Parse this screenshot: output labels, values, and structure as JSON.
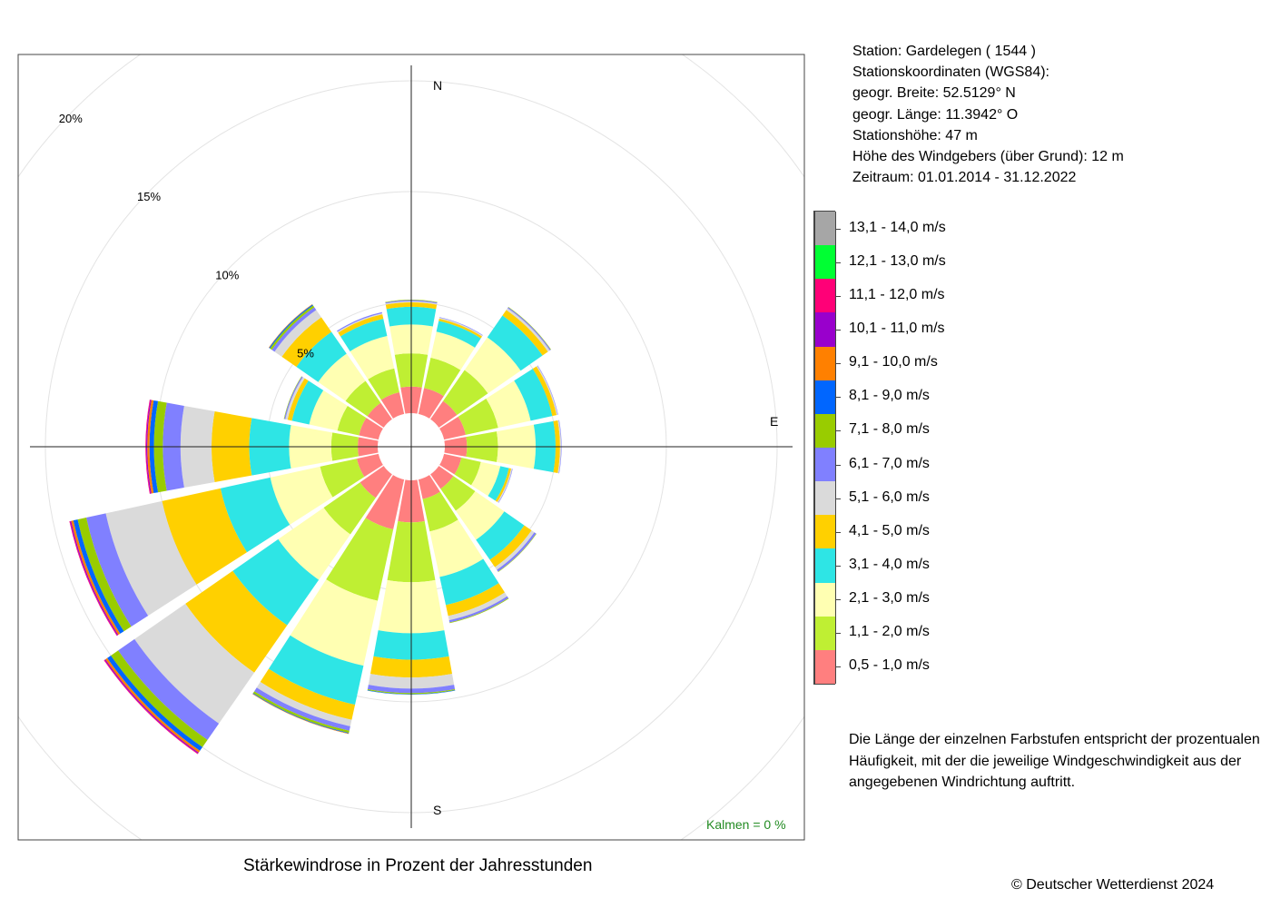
{
  "chart_data": {
    "type": "windrose",
    "title": "Stärkewindrose in Prozent der Jahresstunden",
    "directions": [
      "N",
      "NNO",
      "NO",
      "ONO",
      "O",
      "OSO",
      "SO",
      "SSO",
      "S",
      "SSW",
      "SW",
      "WSW",
      "W",
      "WNW",
      "NW",
      "NNW"
    ],
    "speed_classes": [
      {
        "label": "0,5 - 1,0 m/s",
        "color": "#ff7f7f"
      },
      {
        "label": "1,1 - 2,0 m/s",
        "color": "#bfef33"
      },
      {
        "label": "2,1 - 3,0 m/s",
        "color": "#ffffb2"
      },
      {
        "label": "3,1 - 4,0 m/s",
        "color": "#2ee5e5"
      },
      {
        "label": "4,1 - 5,0 m/s",
        "color": "#ffd000"
      },
      {
        "label": "5,1 - 6,0 m/s",
        "color": "#dadada"
      },
      {
        "label": "6,1 - 7,0 m/s",
        "color": "#8080ff"
      },
      {
        "label": "7,1 - 8,0 m/s",
        "color": "#99cc00"
      },
      {
        "label": "8,1 - 9,0 m/s",
        "color": "#0066ff"
      },
      {
        "label": "9,1 - 10,0 m/s",
        "color": "#ff8000"
      },
      {
        "label": "10,1 - 11,0 m/s",
        "color": "#9900cc"
      },
      {
        "label": "11,1 - 12,0 m/s",
        "color": "#ff0077"
      },
      {
        "label": "12,1 - 13,0 m/s",
        "color": "#00ff33"
      },
      {
        "label": "13,1 - 14,0 m/s",
        "color": "#a6a6a6"
      }
    ],
    "series": [
      {
        "direction": "N",
        "values": [
          1.2,
          1.5,
          1.3,
          0.8,
          0.2,
          0.05,
          0.05,
          0.02,
          0,
          0,
          0,
          0,
          0,
          0
        ]
      },
      {
        "direction": "NNO",
        "values": [
          1.2,
          1.4,
          1.2,
          0.5,
          0.1,
          0.05,
          0.02,
          0,
          0,
          0,
          0,
          0,
          0,
          0
        ]
      },
      {
        "direction": "NO",
        "values": [
          1.0,
          1.7,
          1.8,
          1.2,
          0.3,
          0.1,
          0.05,
          0.02,
          0,
          0,
          0,
          0,
          0,
          0
        ]
      },
      {
        "direction": "ONO",
        "values": [
          1.0,
          1.5,
          1.5,
          1.0,
          0.2,
          0.05,
          0.02,
          0,
          0,
          0,
          0,
          0,
          0,
          0
        ]
      },
      {
        "direction": "O",
        "values": [
          1.0,
          1.4,
          1.7,
          0.9,
          0.2,
          0.05,
          0.02,
          0,
          0,
          0,
          0,
          0,
          0,
          0
        ]
      },
      {
        "direction": "OSO",
        "values": [
          0.8,
          0.9,
          0.9,
          0.4,
          0.1,
          0.05,
          0.02,
          0,
          0,
          0,
          0,
          0,
          0,
          0
        ]
      },
      {
        "direction": "SO",
        "values": [
          0.8,
          1.2,
          1.6,
          1.1,
          0.4,
          0.15,
          0.1,
          0.02,
          0,
          0,
          0,
          0,
          0,
          0
        ]
      },
      {
        "direction": "SSO",
        "values": [
          0.9,
          1.5,
          2.1,
          1.3,
          0.5,
          0.2,
          0.1,
          0.03,
          0,
          0,
          0,
          0,
          0,
          0
        ]
      },
      {
        "direction": "S",
        "values": [
          1.9,
          2.7,
          2.3,
          1.2,
          0.8,
          0.5,
          0.2,
          0.05,
          0.02,
          0,
          0,
          0,
          0,
          0
        ]
      },
      {
        "direction": "SSW",
        "values": [
          2.3,
          3.3,
          3.0,
          1.8,
          0.7,
          0.3,
          0.2,
          0.1,
          0.03,
          0.02,
          0,
          0,
          0,
          0
        ]
      },
      {
        "direction": "SW",
        "values": [
          1.3,
          2.0,
          2.5,
          2.5,
          2.6,
          2.8,
          0.9,
          0.4,
          0.2,
          0.1,
          0.05,
          0.03,
          0,
          0
        ]
      },
      {
        "direction": "WSW",
        "values": [
          1.0,
          1.7,
          2.3,
          2.3,
          2.7,
          2.6,
          0.9,
          0.4,
          0.2,
          0.1,
          0.05,
          0.03,
          0,
          0
        ]
      },
      {
        "direction": "W",
        "values": [
          0.9,
          1.2,
          1.9,
          1.8,
          1.7,
          1.4,
          0.8,
          0.4,
          0.2,
          0.1,
          0.05,
          0.03,
          0,
          0
        ]
      },
      {
        "direction": "WNW",
        "values": [
          0.9,
          1.0,
          1.3,
          0.8,
          0.2,
          0.1,
          0.05,
          0.02,
          0,
          0,
          0,
          0,
          0,
          0
        ]
      },
      {
        "direction": "NW",
        "values": [
          0.9,
          1.2,
          1.5,
          1.2,
          0.8,
          0.4,
          0.15,
          0.1,
          0.05,
          0.02,
          0,
          0,
          0,
          0
        ]
      },
      {
        "direction": "NNW",
        "values": [
          1.0,
          1.1,
          1.5,
          0.8,
          0.2,
          0.05,
          0.05,
          0,
          0,
          0,
          0,
          0,
          0,
          0
        ]
      }
    ],
    "rings": [
      {
        "value": 5,
        "label": "5%"
      },
      {
        "value": 10,
        "label": "10%"
      },
      {
        "value": 15,
        "label": "15%"
      },
      {
        "value": 20,
        "label": "20%"
      }
    ],
    "axis_labels": {
      "north": "N",
      "east": "E",
      "south": "S"
    },
    "calm": "Kalmen  =  0 %",
    "calm_color": "#228b22",
    "grid": true
  },
  "station": {
    "line1": "Station:  Gardelegen  ( 1544 )",
    "line2": "Stationskoordinaten (WGS84):",
    "line3": "geogr. Breite: 52.5129° N",
    "line4": "geogr. Länge: 11.3942° O",
    "line5": "Stationshöhe: 47 m",
    "line6": "Höhe des Windgebers (über Grund): 12 m",
    "line7": "Zeitraum: 01.01.2014 - 31.12.2022"
  },
  "note": {
    "line1": "Die Länge der einzelnen Farbstufen entspricht der prozentualen",
    "line2": "Häufigkeit, mit der die jeweilige Windgeschwindigkeit aus der",
    "line3": "angegebenen Windrichtung auftritt."
  },
  "footer": {
    "title": "Stärkewindrose in Prozent der Jahresstunden",
    "copyright": "© Deutscher Wetterdienst  2024"
  }
}
